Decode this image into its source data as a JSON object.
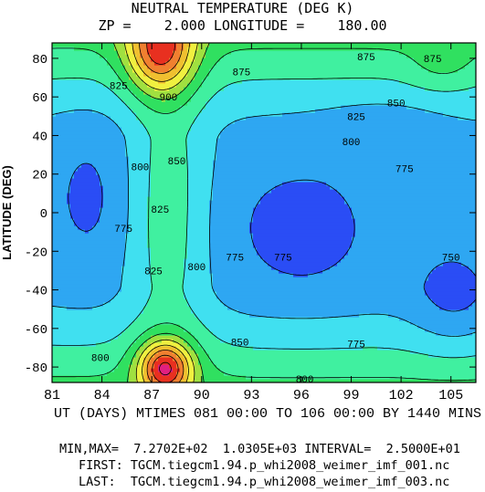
{
  "header": {
    "title": "NEUTRAL TEMPERATURE (DEG K)",
    "subtitle": "ZP =    2.000 LONGITUDE =    180.00"
  },
  "footer": {
    "minmax": "MIN,MAX=  7.2702E+02  1.0305E+03 INTERVAL=  2.5000E+01",
    "first": "FIRST: TGCM.tiegcm1.94.p_whi2008_weimer_imf_001.nc",
    "last": "LAST:  TGCM.tiegcm1.94.p_whi2008_weimer_imf_003.nc"
  },
  "chart_data": {
    "type": "contour",
    "title": "NEUTRAL TEMPERATURE (DEG K)",
    "xlabel": "UT (DAYS) MTIMES 081 00:00 TO 106 00:00 BY 1440 MINS",
    "ylabel": "LATITUDE (DEG)",
    "xlim": [
      81,
      106.5
    ],
    "ylim": [
      -88,
      88
    ],
    "x_ticks": [
      81,
      84,
      87,
      90,
      93,
      96,
      99,
      102,
      105
    ],
    "x_tick_labels": [
      "81",
      "84",
      "87",
      "90",
      "93",
      "96",
      "99",
      "102",
      "105"
    ],
    "y_ticks": [
      -80,
      -60,
      -40,
      -20,
      0,
      20,
      40,
      60,
      80
    ],
    "y_tick_labels": [
      "-80",
      "-60",
      "-40",
      "-20",
      "0",
      "20",
      "40",
      "60",
      "80"
    ],
    "units": "DEG K",
    "min": 727.02,
    "max": 1030.5,
    "interval": 25,
    "levels": [
      750,
      775,
      800,
      825,
      850,
      875,
      900,
      925,
      950,
      975,
      1000,
      1025
    ],
    "colors": [
      "#2a4df5",
      "#2ea7f2",
      "#40e0f0",
      "#40f0a0",
      "#30e060",
      "#a0e040",
      "#f0f040",
      "#f0c030",
      "#f08030",
      "#e83020",
      "#e02080",
      "#f060c0"
    ],
    "labels": [
      {
        "text": "875",
        "x": 99.9,
        "y": 81
      },
      {
        "text": "875",
        "x": 103.9,
        "y": 80
      },
      {
        "text": "875",
        "x": 92.4,
        "y": 73
      },
      {
        "text": "825",
        "x": 85.0,
        "y": 66
      },
      {
        "text": "900",
        "x": 88.0,
        "y": 60
      },
      {
        "text": "850",
        "x": 101.7,
        "y": 57
      },
      {
        "text": "825",
        "x": 99.3,
        "y": 50
      },
      {
        "text": "800",
        "x": 99.0,
        "y": 37
      },
      {
        "text": "850",
        "x": 88.5,
        "y": 27
      },
      {
        "text": "800",
        "x": 86.3,
        "y": 24
      },
      {
        "text": "775",
        "x": 102.2,
        "y": 23
      },
      {
        "text": "825",
        "x": 87.5,
        "y": 2
      },
      {
        "text": "775",
        "x": 85.3,
        "y": -8
      },
      {
        "text": "775",
        "x": 92.0,
        "y": -23
      },
      {
        "text": "775",
        "x": 94.9,
        "y": -23
      },
      {
        "text": "800",
        "x": 89.7,
        "y": -28
      },
      {
        "text": "750",
        "x": 105.0,
        "y": -23
      },
      {
        "text": "825",
        "x": 87.1,
        "y": -30
      },
      {
        "text": "850",
        "x": 92.3,
        "y": -67
      },
      {
        "text": "775",
        "x": 99.3,
        "y": -68
      },
      {
        "text": "800",
        "x": 83.9,
        "y": -75
      },
      {
        "text": "800",
        "x": 96.2,
        "y": -86
      }
    ]
  }
}
